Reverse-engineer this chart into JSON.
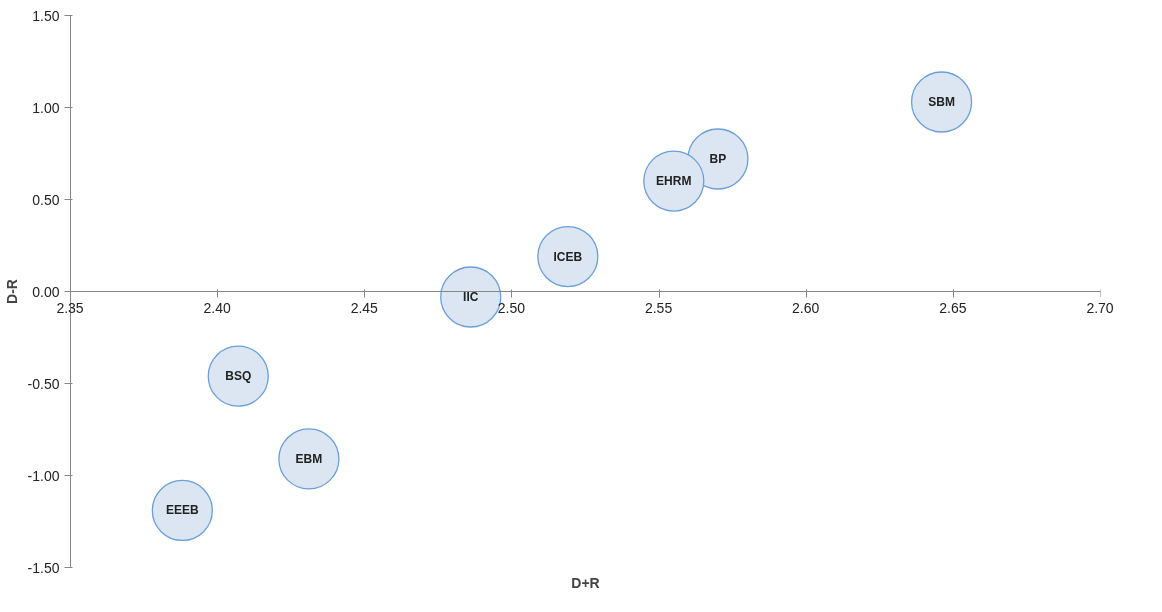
{
  "chart_data": {
    "type": "bubble",
    "xlabel": "D+R",
    "ylabel": "D-R",
    "x": [
      2.646,
      2.57,
      2.555,
      2.519,
      2.486,
      2.407,
      2.431,
      2.388
    ],
    "series": [
      {
        "color": "#dce6f2",
        "values": [
          1.03,
          0.72,
          0.6,
          0.19,
          -0.03,
          -0.46,
          -0.91,
          -1.19
        ],
        "sizes": [
          1,
          1,
          1,
          1,
          1,
          1,
          1,
          1
        ]
      }
    ],
    "xlim": [
      2.35,
      2.7
    ],
    "xticks": [
      2.35,
      {
        "value": 2.4,
        "label": "2.40"
      },
      2.45,
      {
        "value": 2.5,
        "label": "2.50"
      },
      2.55,
      {
        "value": 2.6,
        "label": "2.60"
      },
      2.65,
      {
        "value": 2.7,
        "label": "2.70"
      }
    ],
    "ylim": [
      -1.5,
      1.5
    ],
    "yticks": [
      {
        "value": -1.5,
        "label": "-1.50"
      },
      {
        "value": -1.0,
        "label": "-1.00"
      },
      {
        "value": -0.5,
        "label": "-0.50"
      },
      {
        "value": 0,
        "label": "0.00"
      },
      {
        "value": 0.5,
        "label": "0.50"
      },
      {
        "value": 1.0,
        "label": "1.00"
      },
      {
        "value": 1.5,
        "label": "1.50"
      }
    ],
    "grid": false,
    "annotations": [
      {
        "text": "SBM",
        "x": 2.646,
        "y": 1.03
      },
      {
        "text": "BP",
        "x": 2.57,
        "y": 0.72
      },
      {
        "text": "EHRM",
        "x": 2.555,
        "y": 0.6
      },
      {
        "text": "ICEB",
        "x": 2.519,
        "y": 0.19
      },
      {
        "text": "IIC",
        "x": 2.486,
        "y": -0.03
      },
      {
        "text": "BSQ",
        "x": 2.407,
        "y": -0.46
      },
      {
        "text": "EBM",
        "x": 2.431,
        "y": -0.91
      },
      {
        "text": "EEEB",
        "x": 2.388,
        "y": -1.19
      }
    ]
  }
}
